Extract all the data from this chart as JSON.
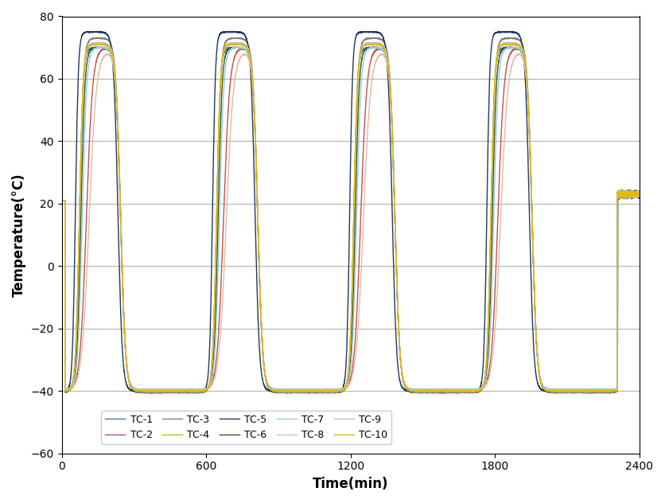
{
  "xlabel": "Time(min)",
  "ylabel": "Temperature(°C)",
  "xlim": [
    0,
    2400
  ],
  "ylim": [
    -60,
    80
  ],
  "xticks": [
    0,
    600,
    1200,
    1800,
    2400
  ],
  "yticks": [
    -60,
    -40,
    -20,
    0,
    20,
    40,
    60,
    80
  ],
  "colors": {
    "TC-1": "#4472C4",
    "TC-2": "#C0504D",
    "TC-3": "#808080",
    "TC-4": "#BFBF00",
    "TC-5": "#1F3864",
    "TC-6": "#375623",
    "TC-7": "#92CDDC",
    "TC-8": "#E6B8A2",
    "TC-9": "#C0C0C0",
    "TC-10": "#E6B800"
  },
  "legend_labels": [
    "TC-1",
    "TC-2",
    "TC-3",
    "TC-4",
    "TC-5",
    "TC-6",
    "TC-7",
    "TC-8",
    "TC-9",
    "TC-10"
  ],
  "linewidth": 1.0,
  "period": 575,
  "start_temp": 21,
  "end_segment_start": 2310
}
